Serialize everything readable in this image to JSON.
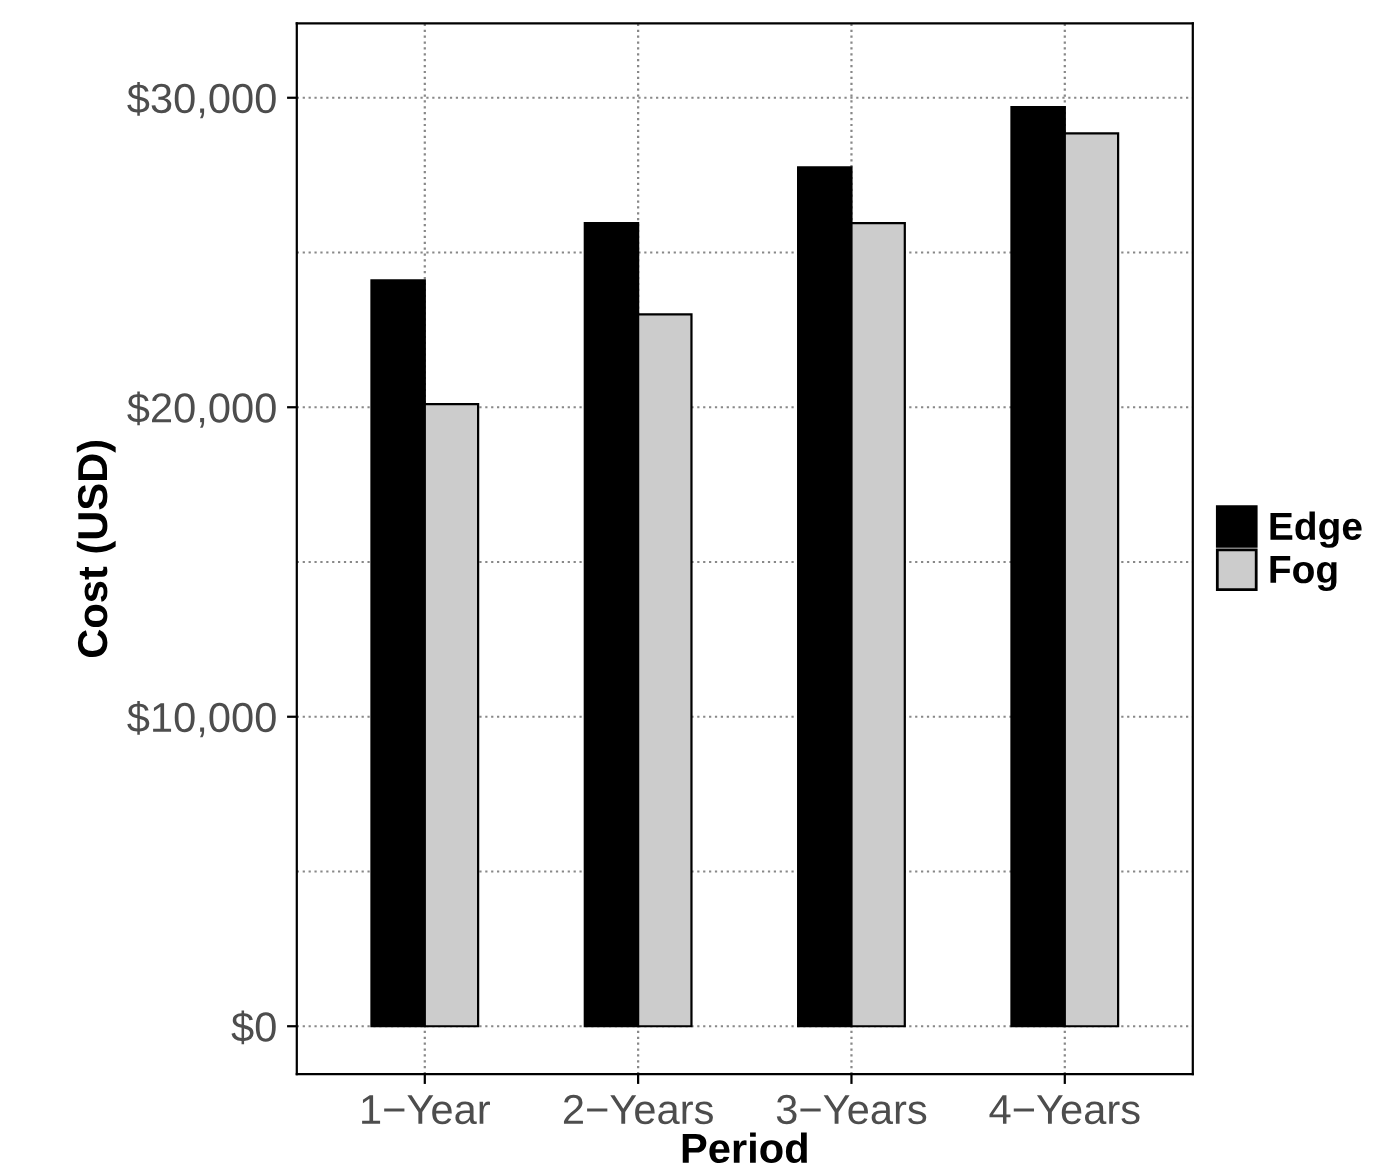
{
  "chart_data": {
    "type": "bar",
    "xlabel": "Period",
    "ylabel": "Cost (USD)",
    "categories": [
      "1−Year",
      "2−Years",
      "3−Years",
      "4−Years"
    ],
    "series": [
      {
        "name": "Edge",
        "color": "#000000",
        "values": [
          24100,
          25950,
          27750,
          29700
        ]
      },
      {
        "name": "Fog",
        "color": "#cccccc",
        "values": [
          20100,
          23000,
          25950,
          28850
        ]
      }
    ],
    "ylim": [
      -1550,
      32400
    ],
    "yticks": [
      {
        "value": 0,
        "label": "$0"
      },
      {
        "value": 5000,
        "label": null
      },
      {
        "value": 10000,
        "label": "$10,000"
      },
      {
        "value": 15000,
        "label": null
      },
      {
        "value": 20000,
        "label": "$20,000"
      },
      {
        "value": 25000,
        "label": null
      },
      {
        "value": 30000,
        "label": "$30,000"
      }
    ],
    "grid": true,
    "legend": "right"
  }
}
